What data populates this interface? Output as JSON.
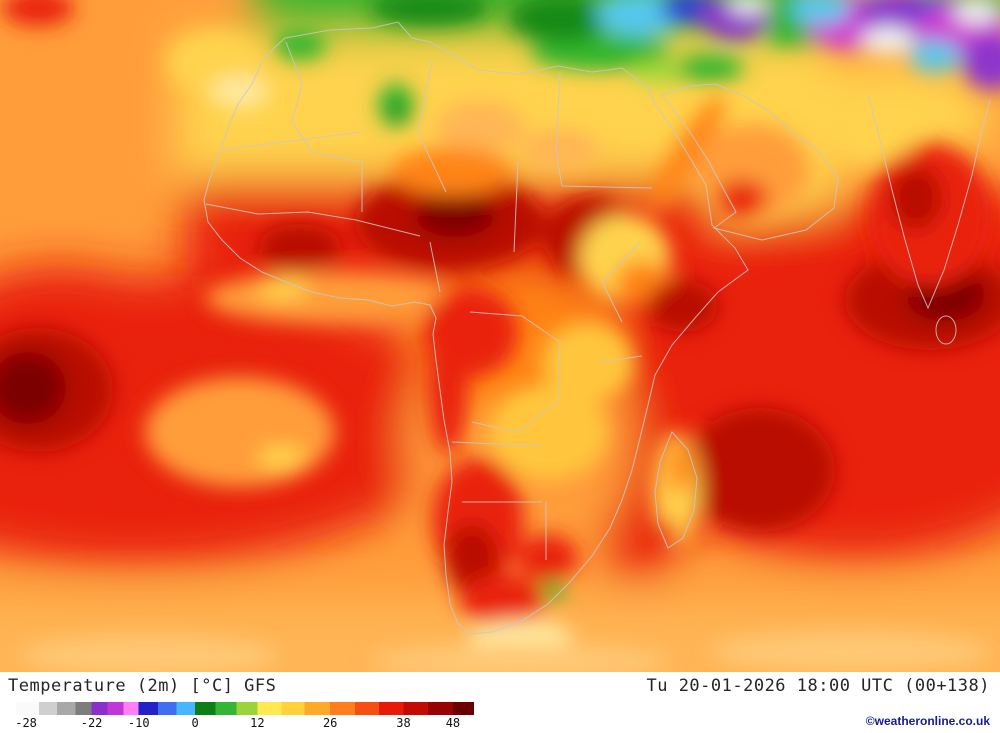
{
  "footer": {
    "title": "Temperature (2m) [°C] GFS",
    "datetime": "Tu 20-01-2026 18:00 UTC (00+138)",
    "copyright": "©weatheronline.co.uk",
    "scale": {
      "labels": [
        "-28",
        "-22",
        "-10",
        "0",
        "12",
        "26",
        "38",
        "48"
      ],
      "label_positions": [
        2.2,
        16.5,
        26.8,
        39.1,
        52.7,
        68.6,
        84.6,
        95.4
      ],
      "stops": [
        {
          "color": "#fafafa",
          "to": 5
        },
        {
          "color": "#cfcfcf",
          "to": 9
        },
        {
          "color": "#a8a8a8",
          "to": 13
        },
        {
          "color": "#7d7d7d",
          "to": 16.5
        },
        {
          "color": "#8a2fc9",
          "to": 20
        },
        {
          "color": "#c136d6",
          "to": 23.5
        },
        {
          "color": "#ff80f6",
          "to": 26.8
        },
        {
          "color": "#2222c8",
          "to": 31
        },
        {
          "color": "#3f6ef0",
          "to": 35
        },
        {
          "color": "#45b6ff",
          "to": 39.1
        },
        {
          "color": "#0e7f16",
          "to": 43.6
        },
        {
          "color": "#35b535",
          "to": 48.1
        },
        {
          "color": "#9ad43a",
          "to": 52.7
        },
        {
          "color": "#ffe94e",
          "to": 58
        },
        {
          "color": "#ffd23c",
          "to": 63
        },
        {
          "color": "#ffa928",
          "to": 68.6
        },
        {
          "color": "#ff7d1c",
          "to": 74
        },
        {
          "color": "#f64f12",
          "to": 79.3
        },
        {
          "color": "#e81a08",
          "to": 84.6
        },
        {
          "color": "#c10b03",
          "to": 90
        },
        {
          "color": "#970301",
          "to": 95.4
        },
        {
          "color": "#6b0000",
          "to": 100
        }
      ]
    }
  },
  "map": {
    "colors": {
      "base_orange": "#ff9d3b",
      "deep_orange": "#ff8414",
      "light_orange": "#ffb554",
      "pale_orange": "#ffc876",
      "yellow": "#ffd34d",
      "gold": "#ffc63e",
      "pale_yellow": "#ffe9a0",
      "red": "#e9220e",
      "dark_red": "#b80d02",
      "maroon": "#7d0000",
      "green": "#33b52f",
      "dark_green": "#128a12",
      "yellow_green": "#a6d83c",
      "cyan": "#55c8ee",
      "blue": "#2e3ed6",
      "purple": "#8d35cc",
      "magenta": "#cf42d2",
      "white_cold": "#f0f0f0",
      "border": "#c8c8c8"
    }
  }
}
